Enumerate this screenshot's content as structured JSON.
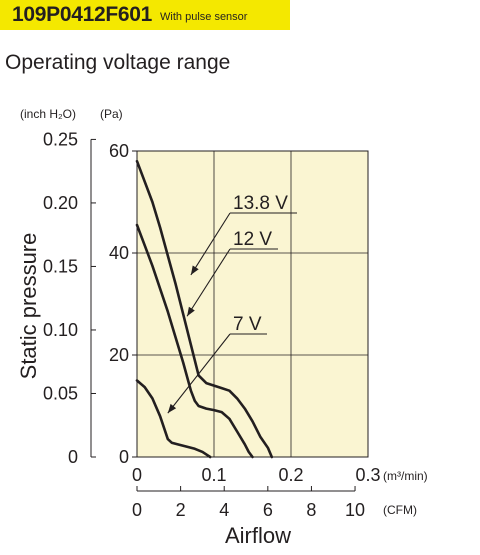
{
  "header": {
    "model": "109P0412F601",
    "tag": "With pulse sensor",
    "section_title": "Operating voltage range"
  },
  "chart_data": {
    "type": "line",
    "xlim": [
      0,
      0.3
    ],
    "ylim": [
      0,
      60
    ],
    "x_unit": "(m³/min)",
    "x_ticks": [
      "0.1",
      "0.2",
      "0.3"
    ],
    "x_zero": "0",
    "x2_unit": "(CFM)",
    "x2_ticks": [
      "0",
      "2",
      "4",
      "6",
      "8",
      "10"
    ],
    "x2_values": [
      0,
      2,
      4,
      6,
      8,
      10
    ],
    "xlabel": "Airflow",
    "ylabel": "Static pressure",
    "y_unit": "(Pa)",
    "y_ticks": [
      "0",
      "20",
      "40",
      "60"
    ],
    "y_tick_values": [
      0,
      20,
      40,
      60
    ],
    "y2_unit": "(inch H₂O)",
    "y2_ticks": [
      "0",
      "0.05",
      "0.10",
      "0.15",
      "0.20",
      "0.25"
    ],
    "y2_values": [
      0,
      0.05,
      0.1,
      0.15,
      0.2,
      0.25
    ],
    "grid": true,
    "series": [
      {
        "name": "13.8 V",
        "points": [
          [
            0,
            58
          ],
          [
            0.01,
            54
          ],
          [
            0.02,
            50
          ],
          [
            0.03,
            45
          ],
          [
            0.04,
            39.5
          ],
          [
            0.05,
            34
          ],
          [
            0.06,
            28
          ],
          [
            0.07,
            22
          ],
          [
            0.08,
            16
          ],
          [
            0.09,
            14.5
          ],
          [
            0.1,
            14
          ],
          [
            0.11,
            13.5
          ],
          [
            0.12,
            13
          ],
          [
            0.13,
            11.5
          ],
          [
            0.14,
            9.5
          ],
          [
            0.15,
            7
          ],
          [
            0.16,
            4
          ],
          [
            0.17,
            1.8
          ],
          [
            0.175,
            0
          ]
        ],
        "label_anchor": [
          0.07,
          35.7
        ]
      },
      {
        "name": "12 V",
        "points": [
          [
            0,
            45.5
          ],
          [
            0.01,
            41.5
          ],
          [
            0.02,
            37.5
          ],
          [
            0.03,
            33
          ],
          [
            0.04,
            28.5
          ],
          [
            0.05,
            23.5
          ],
          [
            0.06,
            18.5
          ],
          [
            0.07,
            13
          ],
          [
            0.075,
            11
          ],
          [
            0.08,
            10
          ],
          [
            0.09,
            9.5
          ],
          [
            0.1,
            9.2
          ],
          [
            0.11,
            8.8
          ],
          [
            0.12,
            7.5
          ],
          [
            0.13,
            5
          ],
          [
            0.14,
            2.5
          ],
          [
            0.145,
            1
          ],
          [
            0.15,
            0
          ]
        ],
        "label_anchor": [
          0.065,
          27.6
        ]
      },
      {
        "name": "7 V",
        "points": [
          [
            0,
            15
          ],
          [
            0.01,
            13.7
          ],
          [
            0.02,
            11.5
          ],
          [
            0.03,
            8
          ],
          [
            0.04,
            3.5
          ],
          [
            0.045,
            2.8
          ],
          [
            0.055,
            2.4
          ],
          [
            0.065,
            2
          ],
          [
            0.075,
            1.6
          ],
          [
            0.085,
            1
          ],
          [
            0.09,
            0.5
          ],
          [
            0.095,
            0
          ]
        ],
        "label_anchor": [
          0.04,
          8.6
        ]
      }
    ]
  }
}
